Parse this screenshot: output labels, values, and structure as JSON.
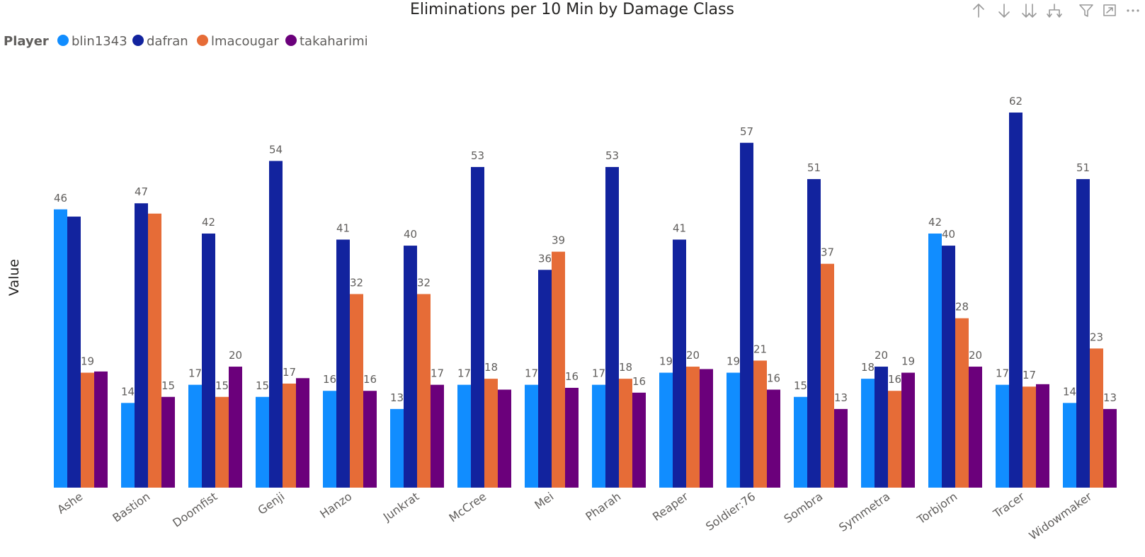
{
  "toolbar": {
    "icons": [
      "arrow-up-icon",
      "arrow-down-icon",
      "double-arrow-down-icon",
      "expand-hierarchy-icon",
      "filter-icon",
      "focus-mode-icon",
      "more-options-icon"
    ]
  },
  "chart_data": {
    "type": "bar",
    "title": "Eliminations per 10 Min by Damage Class",
    "xlabel": "",
    "ylabel": "Value",
    "ylim": [
      0,
      70
    ],
    "grid": false,
    "legend": {
      "title": "Player",
      "placement": "top-left"
    },
    "categories": [
      "Ashe",
      "Bastion",
      "Doomfist",
      "Genji",
      "Hanzo",
      "Junkrat",
      "McCree",
      "Mei",
      "Pharah",
      "Reaper",
      "Soldier:76",
      "Sombra",
      "Symmetra",
      "Torbjorn",
      "Tracer",
      "Widowmaker"
    ],
    "series": [
      {
        "name": "blin1343",
        "color": "#118dff",
        "values": [
          46,
          14,
          17,
          15,
          16,
          13,
          17,
          17,
          17,
          19,
          19,
          15,
          18,
          42,
          17,
          14
        ],
        "labels": [
          "46",
          "14",
          "17",
          "15",
          "16",
          "13",
          "17",
          "17",
          "17",
          "19",
          "19",
          "15",
          "18",
          "42",
          "17",
          "14"
        ]
      },
      {
        "name": "dafran",
        "color": "#12239e",
        "values": [
          44.8,
          47,
          42,
          54,
          41,
          40,
          53,
          36,
          53,
          41,
          57,
          51,
          20,
          40,
          62,
          51
        ],
        "labels": [
          "",
          "47",
          "42",
          "54",
          "41",
          "40",
          "53",
          "36",
          "53",
          "41",
          "57",
          "51",
          "20",
          "40",
          "62",
          "51"
        ]
      },
      {
        "name": "lmacougar",
        "color": "#e66c37",
        "values": [
          19,
          45.3,
          15,
          17.2,
          32,
          32,
          18,
          39,
          18,
          20,
          21,
          37,
          16,
          28,
          16.7,
          23
        ],
        "labels": [
          "19",
          "",
          "15",
          "17",
          "32",
          "32",
          "18",
          "39",
          "18",
          "20",
          "21",
          "37",
          "16",
          "28",
          "17",
          "23"
        ]
      },
      {
        "name": "takaharimi",
        "color": "#6b007b",
        "values": [
          19.2,
          15,
          20,
          18.1,
          16,
          17,
          16.2,
          16.5,
          15.7,
          19.6,
          16.2,
          13,
          19,
          20,
          17.1,
          13
        ],
        "labels": [
          "",
          "15",
          "20",
          "",
          "16",
          "17",
          "",
          "16",
          "16",
          "",
          "16",
          "13",
          "19",
          "20",
          "",
          "13"
        ]
      }
    ]
  }
}
